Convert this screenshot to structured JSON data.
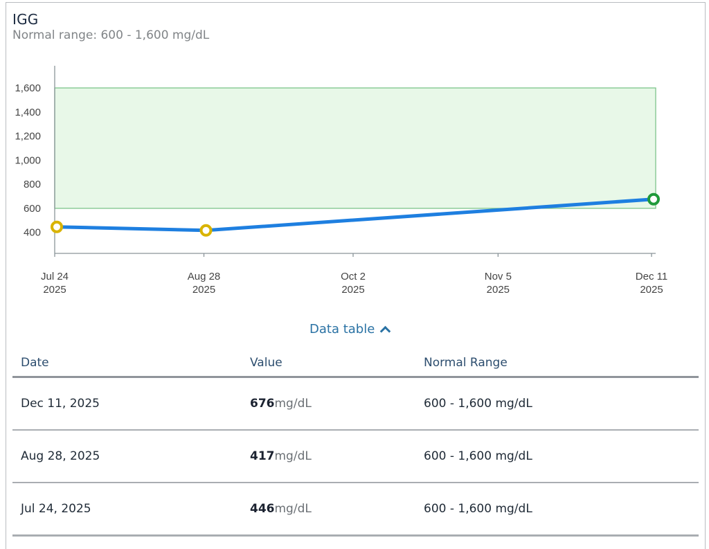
{
  "header": {
    "title": "IGG",
    "subtitle": "Normal range: 600 - 1,600 mg/dL"
  },
  "chart_data": {
    "type": "line",
    "title": "IGG",
    "subtitle": "Normal range: 600 - 1,600 mg/dL",
    "xlabel": "",
    "ylabel": "",
    "units": "mg/dL",
    "ylim": [
      226,
      1784
    ],
    "yticks": [
      400,
      600,
      800,
      1000,
      1200,
      1400,
      1600
    ],
    "ytick_labels": [
      "400",
      "600",
      "800",
      "1,000",
      "1,200",
      "1,400",
      "1,600"
    ],
    "x_axis": {
      "ticks": [
        {
          "day": 0,
          "line1": "Jul 24",
          "line2": "2025"
        },
        {
          "day": 35,
          "line1": "Aug 28",
          "line2": "2025"
        },
        {
          "day": 70,
          "line1": "Oct 2",
          "line2": "2025"
        },
        {
          "day": 104,
          "line1": "Nov 5",
          "line2": "2025"
        },
        {
          "day": 140,
          "line1": "Dec 11",
          "line2": "2025"
        }
      ],
      "range_days": [
        0,
        140
      ]
    },
    "normal_range": {
      "low": 600,
      "high": 1600,
      "color": "#e8f8e8",
      "border": "#7cc48a"
    },
    "series": [
      {
        "name": "IGG",
        "color": "#1e7fe0",
        "points": [
          {
            "date": "Jul 24, 2025",
            "day": 0,
            "value": 446,
            "status": "low",
            "marker_color": "#d9b300"
          },
          {
            "date": "Aug 28, 2025",
            "day": 35,
            "value": 417,
            "status": "low",
            "marker_color": "#d9b300"
          },
          {
            "date": "Dec 11, 2025",
            "day": 140,
            "value": 676,
            "status": "normal",
            "marker_color": "#1f9a3a"
          }
        ]
      }
    ],
    "grid": false,
    "legend": "none"
  },
  "toggle": {
    "label": "Data table",
    "icon": "chevron-up-icon"
  },
  "table": {
    "headers": [
      "Date",
      "Value",
      "Normal Range"
    ],
    "rows": [
      {
        "date": "Dec 11, 2025",
        "value": "676",
        "unit": "mg/dL",
        "range": "600 - 1,600 mg/dL"
      },
      {
        "date": "Aug 28, 2025",
        "value": "417",
        "unit": "mg/dL",
        "range": "600 - 1,600 mg/dL"
      },
      {
        "date": "Jul 24, 2025",
        "value": "446",
        "unit": "mg/dL",
        "range": "600 - 1,600 mg/dL"
      }
    ]
  }
}
